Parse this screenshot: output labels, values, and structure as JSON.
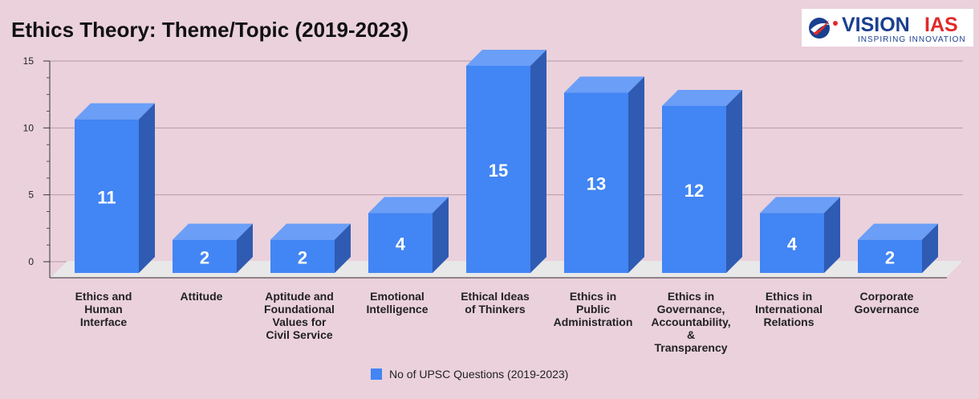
{
  "title": "Ethics Theory: Theme/Topic (2019-2023)",
  "logo": {
    "brand_text_1": "VISION",
    "brand_text_2": "IAS",
    "tagline": "INSPIRING INNOVATION",
    "colors": {
      "primary": "#1a3f8f",
      "accent": "#e02b2b"
    }
  },
  "legend": {
    "label": "No of UPSC Questions (2019-2023)",
    "position": "bottom"
  },
  "colors": {
    "background": "#ead1dc",
    "bar_front": "#4285f4",
    "bar_top": "#6a9ef7",
    "bar_side": "#2f5bb3",
    "floor": "#e8e8e8",
    "label_inside": "#ffffff"
  },
  "chart_data": {
    "type": "bar",
    "title": "Ethics Theory: Theme/Topic (2019-2023)",
    "categories": [
      [
        "Ethics and",
        "Human",
        "Interface"
      ],
      [
        "Attitude"
      ],
      [
        "Aptitude and",
        "Foundational",
        "Values for",
        "Civil Service"
      ],
      [
        "Emotional",
        "Intelligence"
      ],
      [
        "Ethical Ideas",
        "of Thinkers"
      ],
      [
        "Ethics in",
        "Public",
        "Administration"
      ],
      [
        "Ethics in",
        "Governance,",
        "Accountability,",
        "&",
        "Transparency"
      ],
      [
        "Ethics in",
        "International",
        "Relations"
      ],
      [
        "Corporate",
        "Governance"
      ]
    ],
    "series": [
      {
        "name": "No of UPSC Questions (2019-2023)",
        "values": [
          11,
          2,
          2,
          4,
          15,
          13,
          12,
          4,
          2
        ]
      }
    ],
    "y_ticks": [
      0,
      5,
      10,
      15
    ],
    "ylim": [
      -1.2,
      15
    ],
    "grid": true,
    "legend_position": "bottom",
    "three_d": true,
    "data_labels": true
  }
}
